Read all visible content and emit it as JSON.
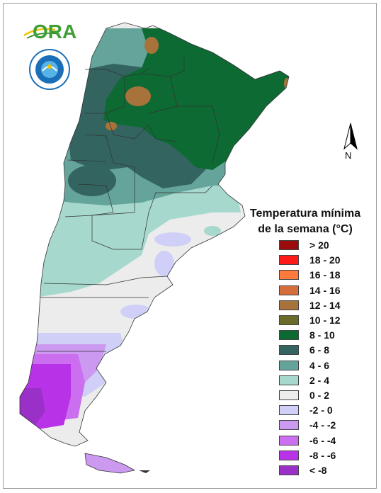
{
  "legend": {
    "title_line1": "Temperatura mínima",
    "title_line2": "de la semana (°C)",
    "items": [
      {
        "label": "> 20",
        "color": "#9b0b0b"
      },
      {
        "label": "18 - 20",
        "color": "#ff1a1a"
      },
      {
        "label": "16 - 18",
        "color": "#ff7a3c"
      },
      {
        "label": "14 - 16",
        "color": "#d46e3a"
      },
      {
        "label": "12 - 14",
        "color": "#a8733a"
      },
      {
        "label": "10 - 12",
        "color": "#6b6b2a"
      },
      {
        "label": "8 - 10",
        "color": "#0d6a33"
      },
      {
        "label": "6 - 8",
        "color": "#336460"
      },
      {
        "label": "4 - 6",
        "color": "#64a49a"
      },
      {
        "label": "2 - 4",
        "color": "#a6d8cd"
      },
      {
        "label": "0 - 2",
        "color": "#ececec"
      },
      {
        "label": "-2 - 0",
        "color": "#cfcff7"
      },
      {
        "label": "-4 - -2",
        "color": "#cc99f0"
      },
      {
        "label": "-6 - -4",
        "color": "#cc6ef0"
      },
      {
        "label": "-8 - -6",
        "color": "#b833e8"
      },
      {
        "label": "< -8",
        "color": "#9a30c8"
      }
    ]
  },
  "branding": {
    "org_logo_text": "ORA",
    "seal_name": "smn-seal"
  },
  "north_arrow": {
    "letter": "N"
  }
}
